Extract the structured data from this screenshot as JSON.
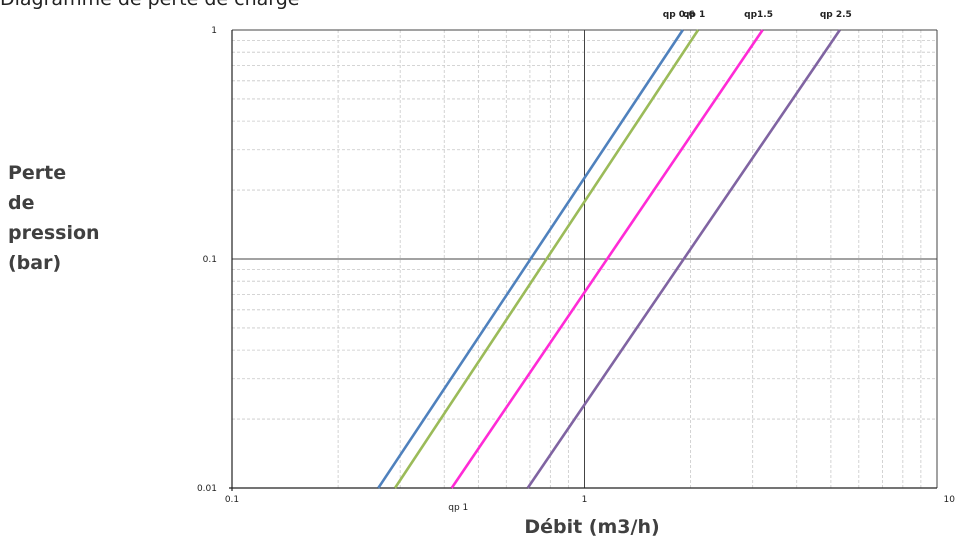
{
  "caption": "Diagramme de perte de charge",
  "chart_data": {
    "type": "line",
    "title": "",
    "xlabel": "Débit (m3/h)",
    "ylabel_lines": [
      "Perte",
      "de",
      "pression",
      "(bar)"
    ],
    "x_scale": "log",
    "y_scale": "log",
    "xlim": [
      0.1,
      10
    ],
    "ylim": [
      0.01,
      1
    ],
    "grid": true,
    "legend_placement": "top",
    "x_ticks": [
      {
        "value": 0.1,
        "label": "0.1"
      },
      {
        "value": 1,
        "label": "1"
      },
      {
        "value": 10,
        "label": "10"
      }
    ],
    "y_ticks": [
      {
        "value": 0.01,
        "label": "0.01"
      },
      {
        "value": 0.1,
        "label": "0.1"
      },
      {
        "value": 1,
        "label": "1"
      }
    ],
    "annotations": [
      {
        "text": "qp 1",
        "x": 0.45,
        "y": 0.01
      }
    ],
    "series": [
      {
        "name": "qp 0.6",
        "color": "#4f81bd",
        "x": [
          0.26,
          1.9
        ],
        "y": [
          0.01,
          1
        ]
      },
      {
        "name": "qp 1",
        "color": "#9bbb59",
        "x": [
          0.29,
          2.1
        ],
        "y": [
          0.01,
          1
        ]
      },
      {
        "name": "qp1.5",
        "color": "#ff2bd6",
        "x": [
          0.42,
          3.2
        ],
        "y": [
          0.01,
          1
        ]
      },
      {
        "name": "qp 2.5",
        "color": "#8064a2",
        "x": [
          0.69,
          5.3
        ],
        "y": [
          0.01,
          1
        ]
      }
    ]
  }
}
